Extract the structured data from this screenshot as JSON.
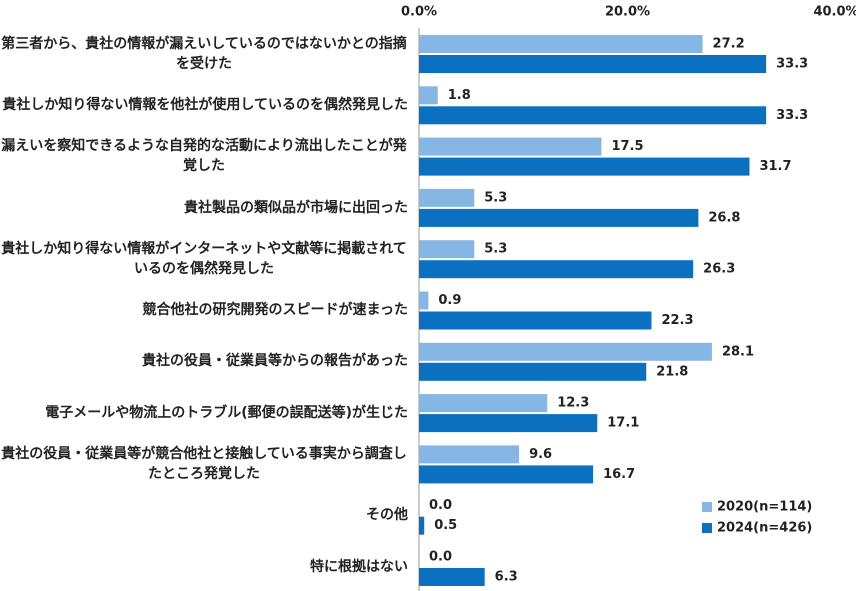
{
  "chart_data": {
    "type": "hbar",
    "categories": [
      "第三者から、貴社の情報が漏えいしているのではないかとの指摘を受けた",
      "貴社しか知り得ない情報を他社が使用しているのを偶然発見した",
      "漏えいを察知できるような自発的な活動により流出したことが発覚した",
      "貴社製品の類似品が市場に出回った",
      "貴社しか知り得ない情報がインターネットや文献等に掲載されているのを偶然発見した",
      "競合他社の研究開発のスピードが速まった",
      "貴社の役員・従業員等からの報告があった",
      "電子メールや物流上のトラブル(郵便の誤配送等)が生じた",
      "貴社の役員・従業員等が競合他社と接触している事実から調査したところ発覚した",
      "その他",
      "特に根拠はない"
    ],
    "series": [
      {
        "name": "2020(n=114)",
        "color": "#85b6e4",
        "values": [
          27.2,
          1.8,
          17.5,
          5.3,
          5.3,
          0.9,
          28.1,
          12.3,
          9.6,
          0,
          0
        ],
        "value_labels": [
          "27.2",
          "1.8",
          "17.5",
          "5.3",
          "5.3",
          "0.9",
          "28.1",
          "12.3",
          "9.6",
          "0.0",
          "0.0"
        ]
      },
      {
        "name": "2024(n=426)",
        "color": "#0a70bf",
        "values": [
          33.3,
          33.3,
          31.7,
          26.8,
          26.3,
          22.3,
          21.8,
          17.1,
          16.7,
          0.5,
          6.3
        ],
        "value_labels": [
          "33.3",
          "33.3",
          "31.7",
          "26.8",
          "26.3",
          "22.3",
          "21.8",
          "17.1",
          "16.7",
          "0.5",
          "6.3"
        ]
      }
    ],
    "xlim": [
      0,
      40
    ],
    "xticks": [
      {
        "value": 0,
        "label": "0.0%"
      },
      {
        "value": 20,
        "label": "20.0%"
      },
      {
        "value": 40,
        "label": "40.0%"
      }
    ],
    "legend": "bottom-right",
    "grid": false
  }
}
